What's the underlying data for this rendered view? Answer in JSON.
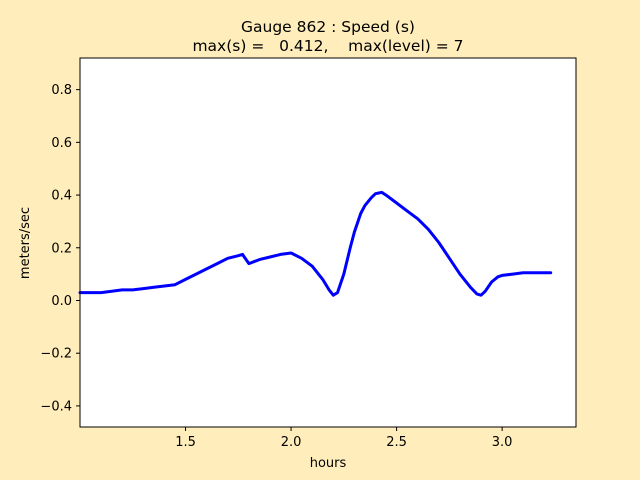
{
  "chart_data": {
    "type": "line",
    "title_line1": "Gauge 862 : Speed (s)",
    "title_line2": "max(s) =   0.412,    max(level) = 7",
    "xlabel": "hours",
    "ylabel": "meters/sec",
    "xlim": [
      1.0,
      3.35
    ],
    "ylim": [
      -0.48,
      0.92
    ],
    "xticks": [
      1.5,
      2.0,
      2.5,
      3.0
    ],
    "xtick_labels": [
      "1.5",
      "2.0",
      "2.5",
      "3.0"
    ],
    "yticks": [
      -0.4,
      -0.2,
      0.0,
      0.2,
      0.4,
      0.6,
      0.8
    ],
    "ytick_labels": [
      "−0.4",
      "−0.2",
      "0.0",
      "0.2",
      "0.4",
      "0.6",
      "0.8"
    ],
    "grid": false,
    "series": [
      {
        "color": "#0000ff",
        "x": [
          1.0,
          1.05,
          1.1,
          1.15,
          1.2,
          1.25,
          1.3,
          1.35,
          1.4,
          1.45,
          1.5,
          1.55,
          1.6,
          1.65,
          1.7,
          1.75,
          1.77,
          1.8,
          1.85,
          1.9,
          1.95,
          2.0,
          2.05,
          2.1,
          2.15,
          2.18,
          2.2,
          2.22,
          2.25,
          2.28,
          2.3,
          2.33,
          2.35,
          2.38,
          2.4,
          2.43,
          2.45,
          2.5,
          2.55,
          2.6,
          2.65,
          2.7,
          2.75,
          2.8,
          2.85,
          2.88,
          2.9,
          2.92,
          2.95,
          2.98,
          3.0,
          3.05,
          3.1,
          3.15,
          3.2,
          3.23
        ],
        "y": [
          0.03,
          0.03,
          0.03,
          0.035,
          0.04,
          0.04,
          0.045,
          0.05,
          0.055,
          0.06,
          0.08,
          0.1,
          0.12,
          0.14,
          0.16,
          0.17,
          0.175,
          0.14,
          0.155,
          0.165,
          0.175,
          0.18,
          0.16,
          0.13,
          0.08,
          0.04,
          0.02,
          0.03,
          0.1,
          0.2,
          0.26,
          0.33,
          0.36,
          0.39,
          0.405,
          0.41,
          0.4,
          0.37,
          0.34,
          0.31,
          0.27,
          0.22,
          0.16,
          0.1,
          0.05,
          0.025,
          0.02,
          0.035,
          0.07,
          0.09,
          0.095,
          0.1,
          0.105,
          0.105,
          0.105,
          0.105
        ]
      }
    ]
  }
}
